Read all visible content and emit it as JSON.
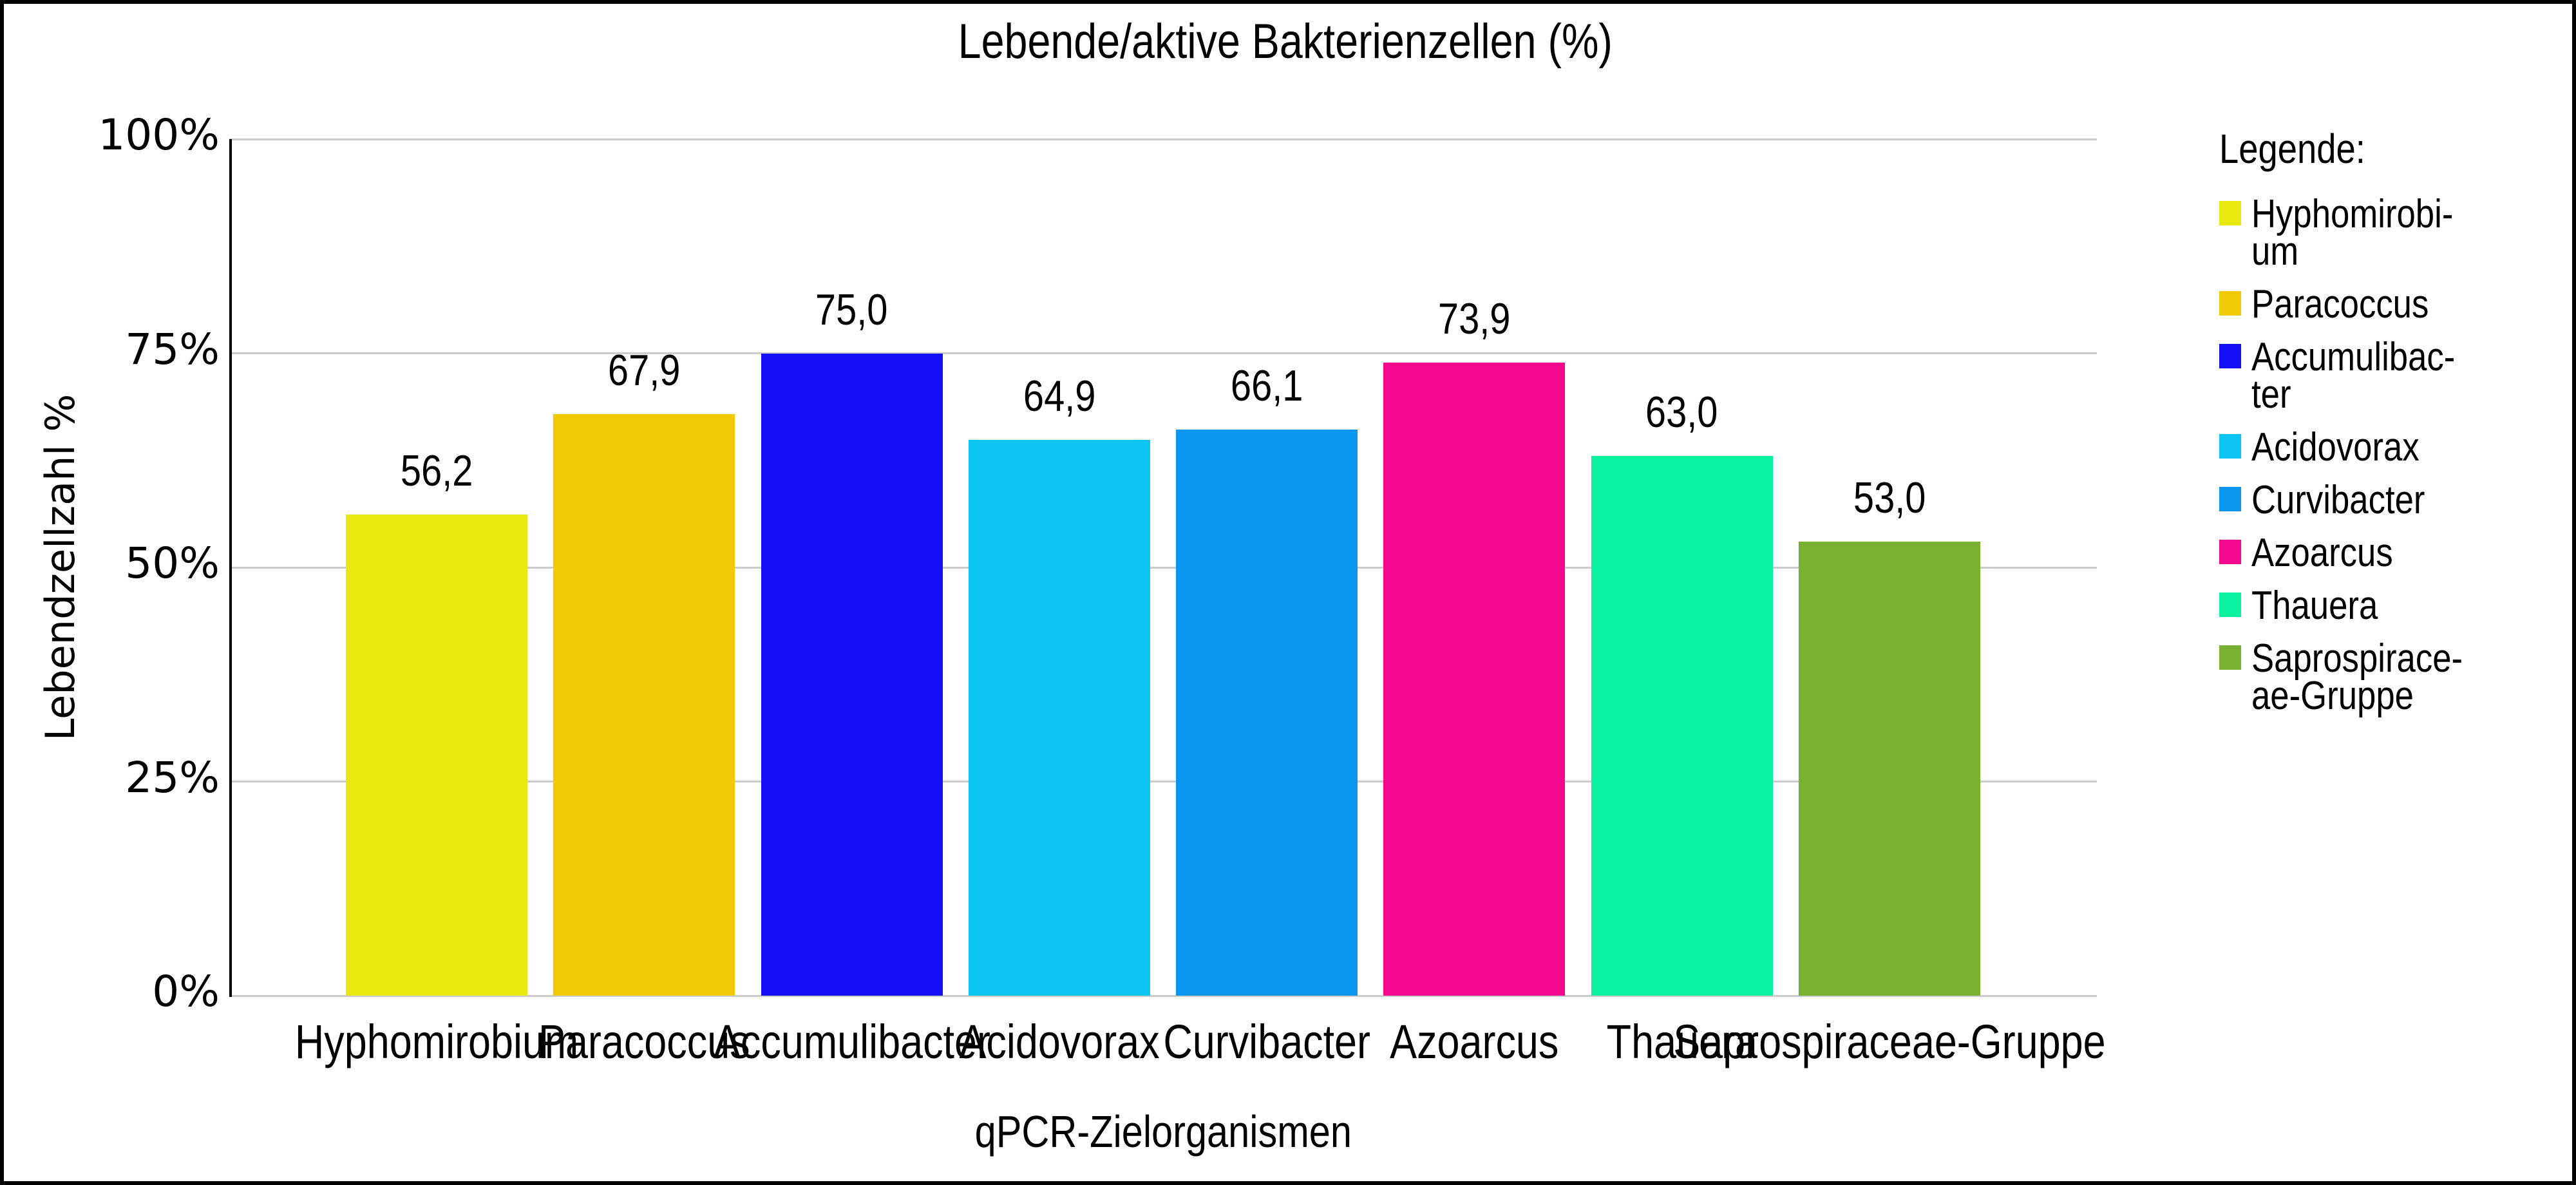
{
  "title": "Lebende/aktive Bakterienzellen (%)",
  "chart_data": {
    "type": "bar",
    "title": "Lebende/aktive Bakterienzellen (%)",
    "xlabel": "qPCR-Zielorganismen",
    "ylabel": "Lebendzellzahl %",
    "categories": [
      "Hyphomirobium",
      "Paracoccus",
      "Accumulibacter",
      "Acidovorax",
      "Curvibacter",
      "Azoarcus",
      "Thauera",
      "Saprospiraceae-Gruppe"
    ],
    "values": [
      56.2,
      67.9,
      75.0,
      64.9,
      66.1,
      73.9,
      63.0,
      53.0
    ],
    "value_labels": [
      "56,2",
      "67,9",
      "75,0",
      "64,9",
      "66,1",
      "73,9",
      "63,0",
      "53,0"
    ],
    "bar_colors": [
      "#e9e90f",
      "#f1ca04",
      "#1310f5",
      "#0bc6f3",
      "#0996ee",
      "#f3088e",
      "#0af29f",
      "#77b033"
    ],
    "ylim": [
      0,
      100
    ],
    "yticks": [
      {
        "label": "0%",
        "value": 0
      },
      {
        "label": "25%",
        "value": 25
      },
      {
        "label": "50%",
        "value": 50
      },
      {
        "label": "75%",
        "value": 75
      },
      {
        "label": "100%",
        "value": 100
      }
    ],
    "grid": "horizontal",
    "gridline_color": "#cccccc",
    "legend_position": "right"
  },
  "legend": {
    "heading": "Legende:",
    "items": [
      {
        "label": "Hyphomirobium",
        "lines": [
          "Hyphomirobi-",
          "um"
        ],
        "color": "#e9e90f"
      },
      {
        "label": "Paracoccus",
        "lines": [
          "Paracoccus"
        ],
        "color": "#f1ca04"
      },
      {
        "label": "Accumulibacter",
        "lines": [
          "Accumulibac-",
          "ter"
        ],
        "color": "#1310f5"
      },
      {
        "label": "Acidovorax",
        "lines": [
          "Acidovorax"
        ],
        "color": "#0bc6f3"
      },
      {
        "label": "Curvibacter",
        "lines": [
          "Curvibacter"
        ],
        "color": "#0996ee"
      },
      {
        "label": "Azoarcus",
        "lines": [
          "Azoarcus"
        ],
        "color": "#f3088e"
      },
      {
        "label": "Thauera",
        "lines": [
          "Thauera"
        ],
        "color": "#0af29f"
      },
      {
        "label": "Saprospiraceae-Gruppe",
        "lines": [
          "Saprospirace-",
          "ae-Gruppe"
        ],
        "color": "#77b033"
      }
    ]
  }
}
